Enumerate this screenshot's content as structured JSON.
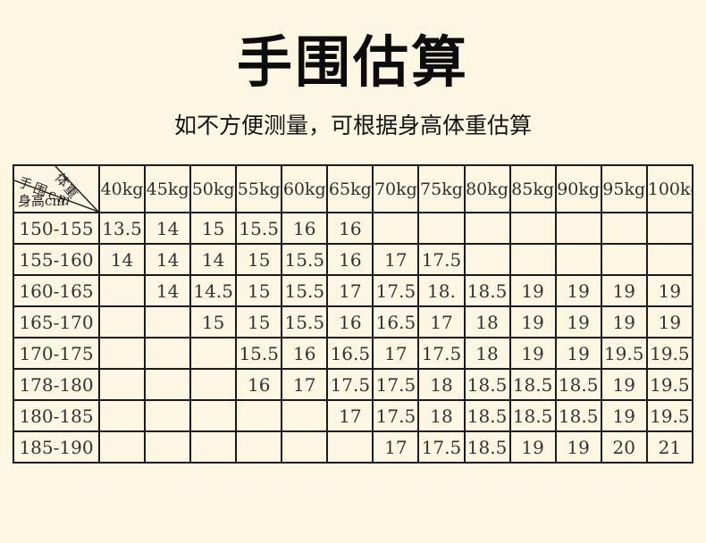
{
  "page": {
    "title": "手围估算",
    "subtitle": "如不方便测量，可根据身高体重估算"
  },
  "chart_data": {
    "type": "table",
    "title": "手围估算",
    "subtitle": "如不方便测量，可根据身高体重估算",
    "corner": {
      "middle_label": "手围cm",
      "top_right_label": "体重",
      "bottom_left_label": "身高cm"
    },
    "weight_headers": [
      "40kg",
      "45kg",
      "50kg",
      "55kg",
      "60kg",
      "65kg",
      "70kg",
      "75kg",
      "80kg",
      "85kg",
      "90kg",
      "95kg",
      "100kg"
    ],
    "rows": [
      {
        "height": "150-155",
        "values": [
          "13.5",
          "14",
          "15",
          "15.5",
          "16",
          "16",
          "",
          "",
          "",
          "",
          "",
          "",
          ""
        ]
      },
      {
        "height": "155-160",
        "values": [
          "14",
          "14",
          "14",
          "15",
          "15.5",
          "16",
          "17",
          "17.5",
          "",
          "",
          "",
          "",
          ""
        ]
      },
      {
        "height": "160-165",
        "values": [
          "",
          "14",
          "14.5",
          "15",
          "15.5",
          "17",
          "17.5",
          "18.",
          "18.5",
          "19",
          "19",
          "19",
          "19"
        ]
      },
      {
        "height": "165-170",
        "values": [
          "",
          "",
          "15",
          "15",
          "15.5",
          "16",
          "16.5",
          "17",
          "18",
          "19",
          "19",
          "19",
          "19"
        ]
      },
      {
        "height": "170-175",
        "values": [
          "",
          "",
          "",
          "15.5",
          "16",
          "16.5",
          "17",
          "17.5",
          "18",
          "19",
          "19",
          "19.5",
          "19.5"
        ]
      },
      {
        "height": "178-180",
        "values": [
          "",
          "",
          "",
          "16",
          "17",
          "17.5",
          "17.5",
          "18",
          "18.5",
          "18.5",
          "18.5",
          "19",
          "19.5"
        ]
      },
      {
        "height": "180-185",
        "values": [
          "",
          "",
          "",
          "",
          "",
          "17",
          "17.5",
          "18",
          "18.5",
          "18.5",
          "18.5",
          "19",
          "19.5"
        ]
      },
      {
        "height": "185-190",
        "values": [
          "",
          "",
          "",
          "",
          "",
          "",
          "17",
          "17.5",
          "18.5",
          "19",
          "19",
          "20",
          "21"
        ]
      }
    ],
    "colors": {
      "background": "#FBF7E3",
      "border": "#1b1b1b",
      "text": "#333333"
    }
  }
}
